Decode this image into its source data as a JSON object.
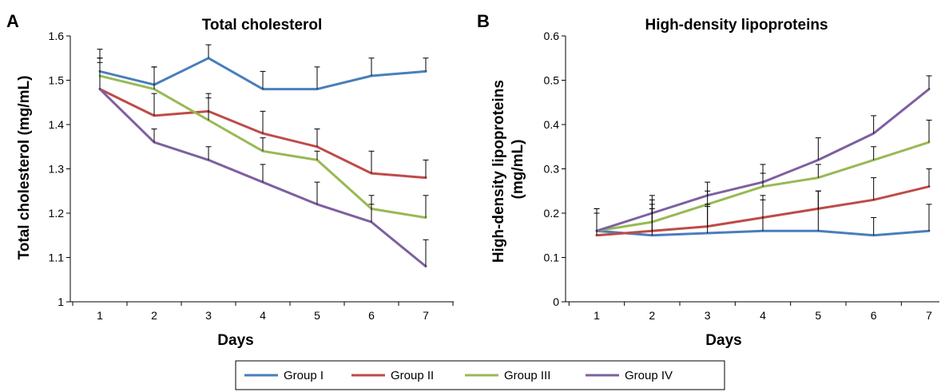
{
  "figure": {
    "panel_letters": [
      "A",
      "B"
    ]
  },
  "legend": {
    "placement": "bottom-center",
    "entries": [
      {
        "label": "Group I",
        "color": "#4a7ebb"
      },
      {
        "label": "Group II",
        "color": "#be4b48"
      },
      {
        "label": "Group III",
        "color": "#98b954"
      },
      {
        "label": "Group IV",
        "color": "#7d60a0"
      }
    ]
  },
  "chart_data": [
    {
      "type": "line",
      "panel": "A",
      "title": "Total cholesterol",
      "xlabel": "Days",
      "ylabel": "Total cholesterol (mg/mL)",
      "x": [
        1,
        2,
        3,
        4,
        5,
        6,
        7
      ],
      "ylim": [
        1,
        1.6
      ],
      "yticks": [
        "1",
        "1.1",
        "1.2",
        "1.3",
        "1.4",
        "1.5",
        "1.6"
      ],
      "grid": false,
      "error_bars": "upper",
      "series": [
        {
          "name": "Group I",
          "color": "#4a7ebb",
          "values": [
            1.52,
            1.49,
            1.55,
            1.48,
            1.48,
            1.51,
            1.52
          ],
          "errors": [
            0.05,
            0.04,
            0.03,
            0.04,
            0.05,
            0.04,
            0.03
          ]
        },
        {
          "name": "Group II",
          "color": "#be4b48",
          "values": [
            1.48,
            1.42,
            1.43,
            1.38,
            1.35,
            1.29,
            1.28
          ],
          "errors": [
            0.07,
            0.05,
            0.04,
            0.05,
            0.04,
            0.05,
            0.04
          ]
        },
        {
          "name": "Group III",
          "color": "#98b954",
          "values": [
            1.51,
            1.48,
            1.41,
            1.34,
            1.32,
            1.21,
            1.19
          ],
          "errors": [
            0.04,
            0.05,
            0.05,
            0.03,
            0.02,
            0.03,
            0.05
          ]
        },
        {
          "name": "Group IV",
          "color": "#7d60a0",
          "values": [
            1.48,
            1.36,
            1.32,
            1.27,
            1.22,
            1.18,
            1.08
          ],
          "errors": [
            0.06,
            0.03,
            0.03,
            0.04,
            0.05,
            0.04,
            0.06
          ]
        }
      ]
    },
    {
      "type": "line",
      "panel": "B",
      "title": "High-density lipoproteins",
      "xlabel": "Days",
      "ylabel": "High-density lipoproteins (mg/mL)",
      "ylabel_lines": [
        "High-density lipoproteins",
        "(mg/mL)"
      ],
      "x": [
        1,
        2,
        3,
        4,
        5,
        6,
        7
      ],
      "ylim": [
        0,
        0.6
      ],
      "yticks": [
        "0",
        "0.1",
        "0.2",
        "0.3",
        "0.4",
        "0.5",
        "0.6"
      ],
      "grid": false,
      "error_bars": "upper",
      "series": [
        {
          "name": "Group I",
          "color": "#4a7ebb",
          "values": [
            0.16,
            0.15,
            0.155,
            0.16,
            0.16,
            0.15,
            0.16
          ],
          "errors": [
            0.05,
            0.08,
            0.06,
            0.07,
            0.09,
            0.04,
            0.06
          ]
        },
        {
          "name": "Group II",
          "color": "#be4b48",
          "values": [
            0.15,
            0.16,
            0.17,
            0.19,
            0.21,
            0.23,
            0.26
          ],
          "errors": [
            0.06,
            0.05,
            0.05,
            0.05,
            0.04,
            0.05,
            0.04
          ]
        },
        {
          "name": "Group III",
          "color": "#98b954",
          "values": [
            0.16,
            0.18,
            0.22,
            0.26,
            0.28,
            0.32,
            0.36
          ],
          "errors": [
            0.04,
            0.04,
            0.03,
            0.03,
            0.03,
            0.03,
            0.05
          ]
        },
        {
          "name": "Group IV",
          "color": "#7d60a0",
          "values": [
            0.16,
            0.2,
            0.24,
            0.27,
            0.32,
            0.38,
            0.48
          ],
          "errors": [
            0.05,
            0.04,
            0.03,
            0.04,
            0.05,
            0.04,
            0.03
          ]
        }
      ]
    }
  ]
}
